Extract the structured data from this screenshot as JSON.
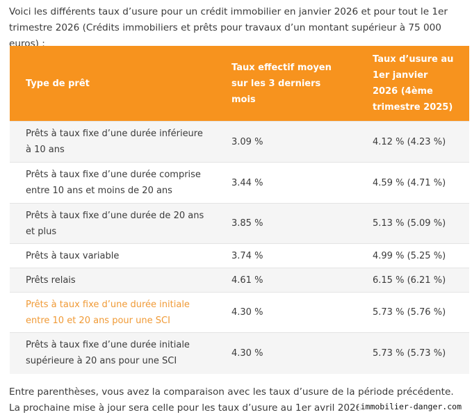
{
  "intro": "Voici les différents taux d’usure pour un crédit immobilier en janvier 2026 et pour tout le 1er trimestre 2026 (Crédits immobiliers et prêts pour travaux d’un montant supérieur à 75 000 euros) :",
  "table": {
    "headers": {
      "type": "Type de prêt",
      "teg": "Taux effectif moyen sur les 3 derniers mois",
      "usure": "Taux d’usure au 1er janvier 2026 (4ème trimestre 2025)"
    },
    "rows": [
      {
        "type": "Prêts à taux fixe d’une durée inférieure à 10 ans",
        "teg": "3.09 %",
        "usure": "4.12 % (4.23 %)"
      },
      {
        "type": "Prêts à taux fixe d’une durée comprise entre 10 ans et moins de 20 ans",
        "teg": "3.44 %",
        "usure": "4.59 % (4.71 %)"
      },
      {
        "type": "Prêts à taux fixe d’une durée de 20 ans et plus",
        "teg": "3.85 %",
        "usure": "5.13 % (5.09 %)"
      },
      {
        "type": "Prêts à taux variable",
        "teg": "3.74 %",
        "usure": "4.99 % (5.25 %)"
      },
      {
        "type": "Prêts relais",
        "teg": "4.61 %",
        "usure": "6.15 % (6.21 %)"
      },
      {
        "type": "Prêts à taux fixe d’une durée initiale entre 10 et 20 ans pour une SCI",
        "teg": "4.30 %",
        "usure": "5.73 % (5.76 %)"
      },
      {
        "type": "Prêts à taux fixe d’une durée initiale supérieure à 20 ans pour une SCI",
        "teg": "4.30 %",
        "usure": "5.73 % (5.73 %)"
      }
    ]
  },
  "footer": "Entre parenthèses, vous avez la comparaison avec les taux d’usure de la période précédente. La prochaine mise à jour sera celle pour les taux d’usure au 1er avril 2026.",
  "watermark": "immobilier-danger.com",
  "colors": {
    "header_bg": "#f7931e",
    "highlight_text": "#f09a36"
  }
}
